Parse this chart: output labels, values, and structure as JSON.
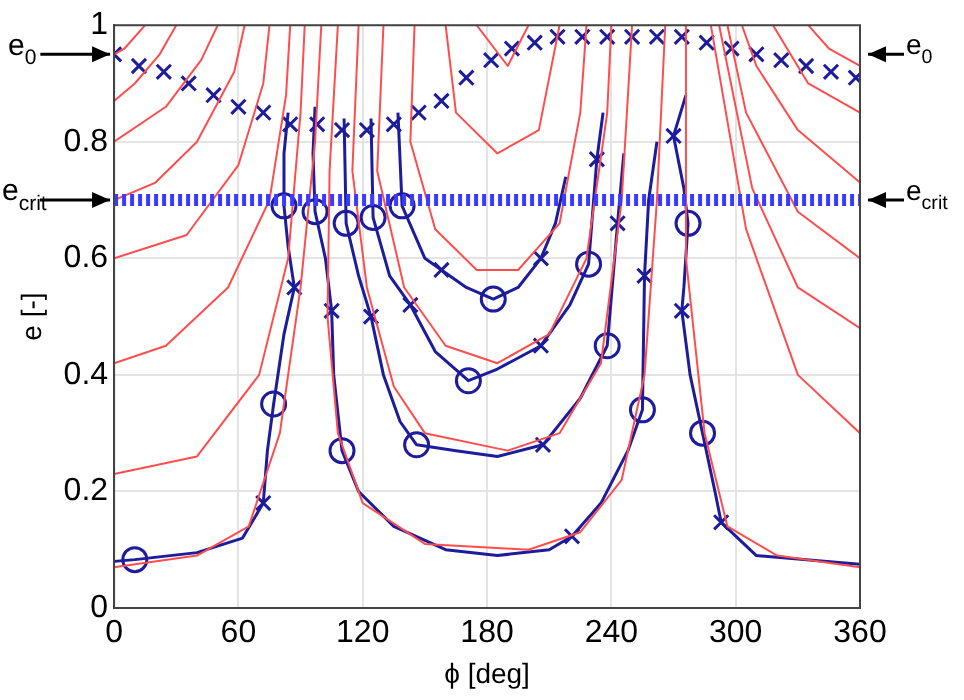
{
  "chart_data": {
    "type": "line",
    "xlabel": "ϕ [deg]",
    "ylabel": "e [-]",
    "xlim": [
      0,
      360
    ],
    "xticks": [
      0,
      60,
      120,
      180,
      240,
      300,
      360
    ],
    "ylim": [
      0,
      1
    ],
    "yticks": [
      0,
      0.2,
      0.4,
      0.6,
      0.8,
      1
    ],
    "grid": true,
    "ref_lines": [
      {
        "axis": "y",
        "value": 0.7,
        "label": "e$_{crit}$",
        "color": "#3b3bff",
        "line_style": "dotted"
      }
    ],
    "annotations": [
      {
        "text": "e$_{0}$",
        "x": 0,
        "y": 0.95
      },
      {
        "text": "e$_{0}$",
        "x": 360,
        "y": 0.95
      }
    ],
    "series": [
      {
        "type": "line",
        "color": "#ff4d4d",
        "x": [
          15,
          5,
          0
        ],
        "values": [
          1,
          0.96,
          0.95
        ]
      },
      {
        "type": "line",
        "color": "#ff4d4d",
        "x": [
          30,
          22,
          10,
          0
        ],
        "values": [
          1,
          0.95,
          0.9,
          0.87
        ]
      },
      {
        "type": "line",
        "color": "#ff4d4d",
        "x": [
          50,
          42,
          25,
          0
        ],
        "values": [
          1,
          0.94,
          0.86,
          0.8
        ]
      },
      {
        "type": "line",
        "color": "#ff4d4d",
        "x": [
          63,
          58,
          40,
          20,
          0
        ],
        "values": [
          1,
          0.92,
          0.8,
          0.73,
          0.7
        ]
      },
      {
        "type": "line",
        "color": "#ff4d4d",
        "x": [
          75,
          72,
          60,
          35,
          0
        ],
        "values": [
          1,
          0.9,
          0.76,
          0.64,
          0.6
        ]
      },
      {
        "type": "line",
        "color": "#ff4d4d",
        "x": [
          85,
          83,
          75,
          55,
          25,
          0
        ],
        "values": [
          1,
          0.88,
          0.7,
          0.55,
          0.45,
          0.42
        ]
      },
      {
        "type": "line",
        "color": "#ff4d4d",
        "x": [
          92,
          90,
          84,
          70,
          40,
          0
        ],
        "values": [
          1,
          0.85,
          0.6,
          0.4,
          0.26,
          0.23
        ]
      },
      {
        "type": "line",
        "color": "#ff4d4d",
        "x": [
          100,
          97,
          90,
          80,
          65,
          40,
          0
        ],
        "values": [
          1,
          0.8,
          0.55,
          0.3,
          0.14,
          0.09,
          0.07
        ]
      },
      {
        "type": "line",
        "color": "#ff4d4d",
        "x": [
          108,
          104,
          103,
          108,
          120,
          150,
          200,
          225,
          245,
          256,
          262,
          266
        ],
        "values": [
          1,
          0.75,
          0.5,
          0.3,
          0.18,
          0.11,
          0.1,
          0.13,
          0.22,
          0.4,
          0.7,
          1
        ]
      },
      {
        "type": "line",
        "color": "#ff4d4d",
        "x": [
          118,
          115,
          122,
          135,
          150,
          190,
          215,
          235,
          245,
          250
        ],
        "values": [
          1,
          0.75,
          0.55,
          0.38,
          0.3,
          0.27,
          0.3,
          0.42,
          0.7,
          1
        ]
      },
      {
        "type": "line",
        "color": "#ff4d4d",
        "x": [
          130,
          127,
          140,
          160,
          185,
          210,
          228,
          238,
          240
        ],
        "values": [
          1,
          0.75,
          0.55,
          0.45,
          0.42,
          0.47,
          0.6,
          0.85,
          1
        ]
      },
      {
        "type": "line",
        "color": "#ff4d4d",
        "x": [
          145,
          143,
          155,
          175,
          195,
          215,
          225,
          228
        ],
        "values": [
          1,
          0.8,
          0.65,
          0.58,
          0.58,
          0.66,
          0.85,
          1
        ]
      },
      {
        "type": "line",
        "color": "#ff4d4d",
        "x": [
          160,
          165,
          185,
          205,
          215
        ],
        "values": [
          1,
          0.85,
          0.78,
          0.82,
          1
        ]
      },
      {
        "type": "line",
        "color": "#ff4d4d",
        "x": [
          175,
          190,
          200
        ],
        "values": [
          1,
          0.93,
          1
        ]
      },
      {
        "type": "line",
        "color": "#ff4d4d",
        "x": [
          360,
          345,
          335
        ],
        "values": [
          0.93,
          0.96,
          1
        ]
      },
      {
        "type": "line",
        "color": "#ff4d4d",
        "x": [
          360,
          335,
          318
        ],
        "values": [
          0.85,
          0.9,
          1
        ]
      },
      {
        "type": "line",
        "color": "#ff4d4d",
        "x": [
          360,
          330,
          310,
          303
        ],
        "values": [
          0.73,
          0.82,
          0.93,
          1
        ]
      },
      {
        "type": "line",
        "color": "#ff4d4d",
        "x": [
          360,
          330,
          305,
          296
        ],
        "values": [
          0.6,
          0.68,
          0.85,
          1
        ]
      },
      {
        "type": "line",
        "color": "#ff4d4d",
        "x": [
          360,
          330,
          308,
          292
        ],
        "values": [
          0.48,
          0.55,
          0.72,
          1
        ]
      },
      {
        "type": "line",
        "color": "#ff4d4d",
        "x": [
          360,
          330,
          305,
          288
        ],
        "values": [
          0.3,
          0.4,
          0.65,
          1
        ]
      },
      {
        "type": "line",
        "color": "#ff4d4d",
        "x": [
          360,
          320,
          296,
          285,
          276,
          276
        ],
        "values": [
          0.07,
          0.09,
          0.14,
          0.3,
          0.6,
          1
        ]
      },
      {
        "type": "line",
        "color": "#1c1c9c",
        "x": [
          0,
          10,
          40,
          62,
          72,
          74,
          77,
          82,
          87,
          84,
          82,
          82,
          84
        ],
        "values": [
          0.08,
          0.083,
          0.095,
          0.12,
          0.18,
          0.27,
          0.35,
          0.47,
          0.55,
          0.62,
          0.69,
          0.78,
          0.85
        ]
      },
      {
        "type": "line",
        "color": "#1c1c9c",
        "x": [
          276,
          270,
          275,
          277,
          275,
          274,
          278,
          284,
          290,
          293,
          310,
          360
        ],
        "values": [
          0.88,
          0.81,
          0.72,
          0.66,
          0.55,
          0.51,
          0.4,
          0.3,
          0.2,
          0.147,
          0.09,
          0.075
        ]
      },
      {
        "type": "line",
        "color": "#1c1c9c",
        "x": [
          97,
          96,
          97,
          102,
          105,
          106,
          110,
          118,
          135,
          160,
          185,
          210,
          221,
          235,
          248,
          255,
          256,
          258,
          262
        ],
        "values": [
          0.86,
          0.78,
          0.68,
          0.6,
          0.51,
          0.4,
          0.27,
          0.2,
          0.14,
          0.1,
          0.09,
          0.1,
          0.123,
          0.18,
          0.27,
          0.34,
          0.57,
          0.7,
          0.8
        ]
      },
      {
        "type": "line",
        "color": "#1c1c9c",
        "x": [
          111,
          112,
          118,
          124,
          130,
          138,
          146,
          165,
          185,
          207,
          225,
          238,
          243,
          246
        ],
        "values": [
          0.84,
          0.66,
          0.57,
          0.5,
          0.4,
          0.32,
          0.28,
          0.27,
          0.26,
          0.28,
          0.36,
          0.45,
          0.66,
          0.78
        ]
      },
      {
        "type": "line",
        "color": "#1c1c9c",
        "x": [
          124,
          125,
          133,
          143,
          155,
          171,
          185,
          206,
          220,
          229,
          233,
          236
        ],
        "values": [
          0.84,
          0.67,
          0.57,
          0.52,
          0.44,
          0.39,
          0.41,
          0.45,
          0.52,
          0.59,
          0.77,
          0.85
        ]
      },
      {
        "type": "line",
        "color": "#1c1c9c",
        "x": [
          137,
          139,
          150,
          158,
          170,
          183,
          195,
          206,
          213,
          218
        ],
        "values": [
          0.85,
          0.69,
          0.6,
          0.58,
          0.55,
          0.53,
          0.55,
          0.6,
          0.66,
          0.74
        ]
      },
      {
        "type": "scatter",
        "marker": "circle",
        "color": "#1c1c9c",
        "x": [
          10,
          77,
          110,
          146,
          171,
          183,
          82,
          97,
          112,
          125,
          139,
          229,
          238,
          255,
          277,
          284
        ],
        "values": [
          0.083,
          0.35,
          0.27,
          0.28,
          0.39,
          0.53,
          0.69,
          0.68,
          0.66,
          0.67,
          0.69,
          0.59,
          0.45,
          0.34,
          0.66,
          0.3
        ]
      },
      {
        "type": "scatter",
        "marker": "cross",
        "color": "#1c1c9c",
        "x": [
          72,
          87,
          105,
          124,
          143,
          158,
          206,
          206,
          207,
          221,
          233,
          243,
          256,
          270,
          274,
          293,
          0,
          12,
          24,
          36,
          48,
          60,
          72,
          85,
          98,
          110,
          122,
          135,
          147,
          158,
          170,
          182,
          192,
          203,
          214,
          226,
          238,
          250,
          262,
          274,
          286,
          298,
          310,
          322,
          334,
          346,
          358
        ],
        "values": [
          0.18,
          0.55,
          0.51,
          0.5,
          0.52,
          0.58,
          0.6,
          0.45,
          0.28,
          0.123,
          0.77,
          0.66,
          0.57,
          0.81,
          0.51,
          0.147,
          0.95,
          0.93,
          0.92,
          0.9,
          0.88,
          0.86,
          0.85,
          0.83,
          0.83,
          0.82,
          0.82,
          0.83,
          0.85,
          0.87,
          0.91,
          0.94,
          0.96,
          0.97,
          0.98,
          0.98,
          0.98,
          0.98,
          0.98,
          0.98,
          0.97,
          0.96,
          0.95,
          0.94,
          0.93,
          0.92,
          0.91
        ]
      }
    ]
  }
}
